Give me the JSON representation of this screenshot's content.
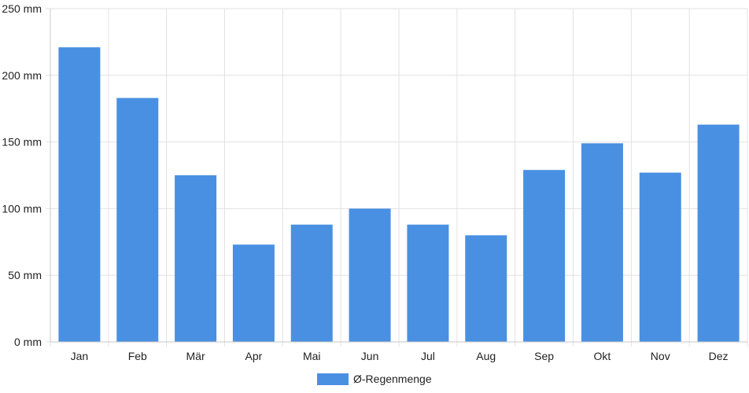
{
  "chart_data": {
    "type": "bar",
    "categories": [
      "Jan",
      "Feb",
      "Mär",
      "Apr",
      "Mai",
      "Jun",
      "Jul",
      "Aug",
      "Sep",
      "Okt",
      "Nov",
      "Dez"
    ],
    "series": [
      {
        "name": "Ø-Regenmenge",
        "values": [
          221,
          183,
          125,
          73,
          88,
          100,
          88,
          80,
          129,
          149,
          127,
          163
        ],
        "color": "#4a90e2"
      }
    ],
    "y_ticks": [
      "0 mm",
      "50 mm",
      "100 mm",
      "150 mm",
      "200 mm",
      "250 mm"
    ],
    "y_tick_values": [
      0,
      50,
      100,
      150,
      200,
      250
    ],
    "ylim": [
      0,
      250
    ],
    "grid": true,
    "legend_position": "bottom",
    "title": "",
    "xlabel": "",
    "ylabel": ""
  }
}
